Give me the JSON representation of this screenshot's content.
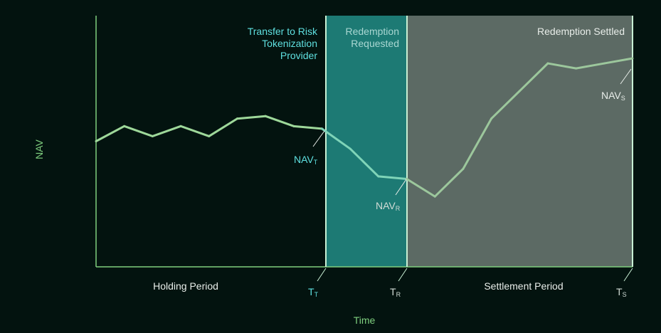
{
  "axes": {
    "y_label": "NAV",
    "x_label": "Time"
  },
  "regions": [
    {
      "key": "holding",
      "caption": "",
      "bottom_label": "Holding Period"
    },
    {
      "key": "transfer",
      "caption_lines": [
        "Transfer to Risk",
        "Tokenization",
        "Provider"
      ]
    },
    {
      "key": "redemption",
      "caption_lines": [
        "Redemption",
        "Requested"
      ],
      "fill": "#1d7a74"
    },
    {
      "key": "settlement",
      "caption_lines": [
        "Redemption Settled"
      ],
      "bottom_label": "Settlement Period",
      "fill": "#5c6a64"
    }
  ],
  "markers": [
    {
      "key": "T",
      "nav_label": "NAV",
      "nav_sub": "T",
      "time_label": "T",
      "time_sub": "T",
      "color": "#5fe0e0"
    },
    {
      "key": "R",
      "nav_label": "NAV",
      "nav_sub": "R",
      "time_label": "T",
      "time_sub": "R",
      "color": "#d2dcd6"
    },
    {
      "key": "S",
      "nav_label": "NAV",
      "nav_sub": "S",
      "time_label": "T",
      "time_sub": "S",
      "color": "#d2dcd6"
    }
  ],
  "colors": {
    "background": "#03130f",
    "axis": "#7fcf7f",
    "line": "#9ed89a",
    "divider": "#c8f0d4",
    "cyan_text": "#5fe0e0",
    "teal_region": "#1d7a74",
    "gray_region": "#5c6a64",
    "light_text": "#dfe8e3"
  },
  "nav_series": [
    {
      "t": 0,
      "nav": 0.5
    },
    {
      "t": 1,
      "nav": 0.56
    },
    {
      "t": 2,
      "nav": 0.52
    },
    {
      "t": 3,
      "nav": 0.56
    },
    {
      "t": 4,
      "nav": 0.52
    },
    {
      "t": 5,
      "nav": 0.59
    },
    {
      "t": 6,
      "nav": 0.6
    },
    {
      "t": 7,
      "nav": 0.56
    },
    {
      "t": 8,
      "nav": 0.55
    },
    {
      "t": 9,
      "nav": 0.47
    },
    {
      "t": 10,
      "nav": 0.36
    },
    {
      "t": 11,
      "nav": 0.35
    },
    {
      "t": 12,
      "nav": 0.28
    },
    {
      "t": 13,
      "nav": 0.39
    },
    {
      "t": 14,
      "nav": 0.59
    },
    {
      "t": 15,
      "nav": 0.7
    },
    {
      "t": 16,
      "nav": 0.81
    },
    {
      "t": 17,
      "nav": 0.79
    },
    {
      "t": 18,
      "nav": 0.81
    },
    {
      "t": 19,
      "nav": 0.83
    }
  ],
  "event_times": {
    "T": 8.15,
    "R": 11.1,
    "S": 19
  }
}
